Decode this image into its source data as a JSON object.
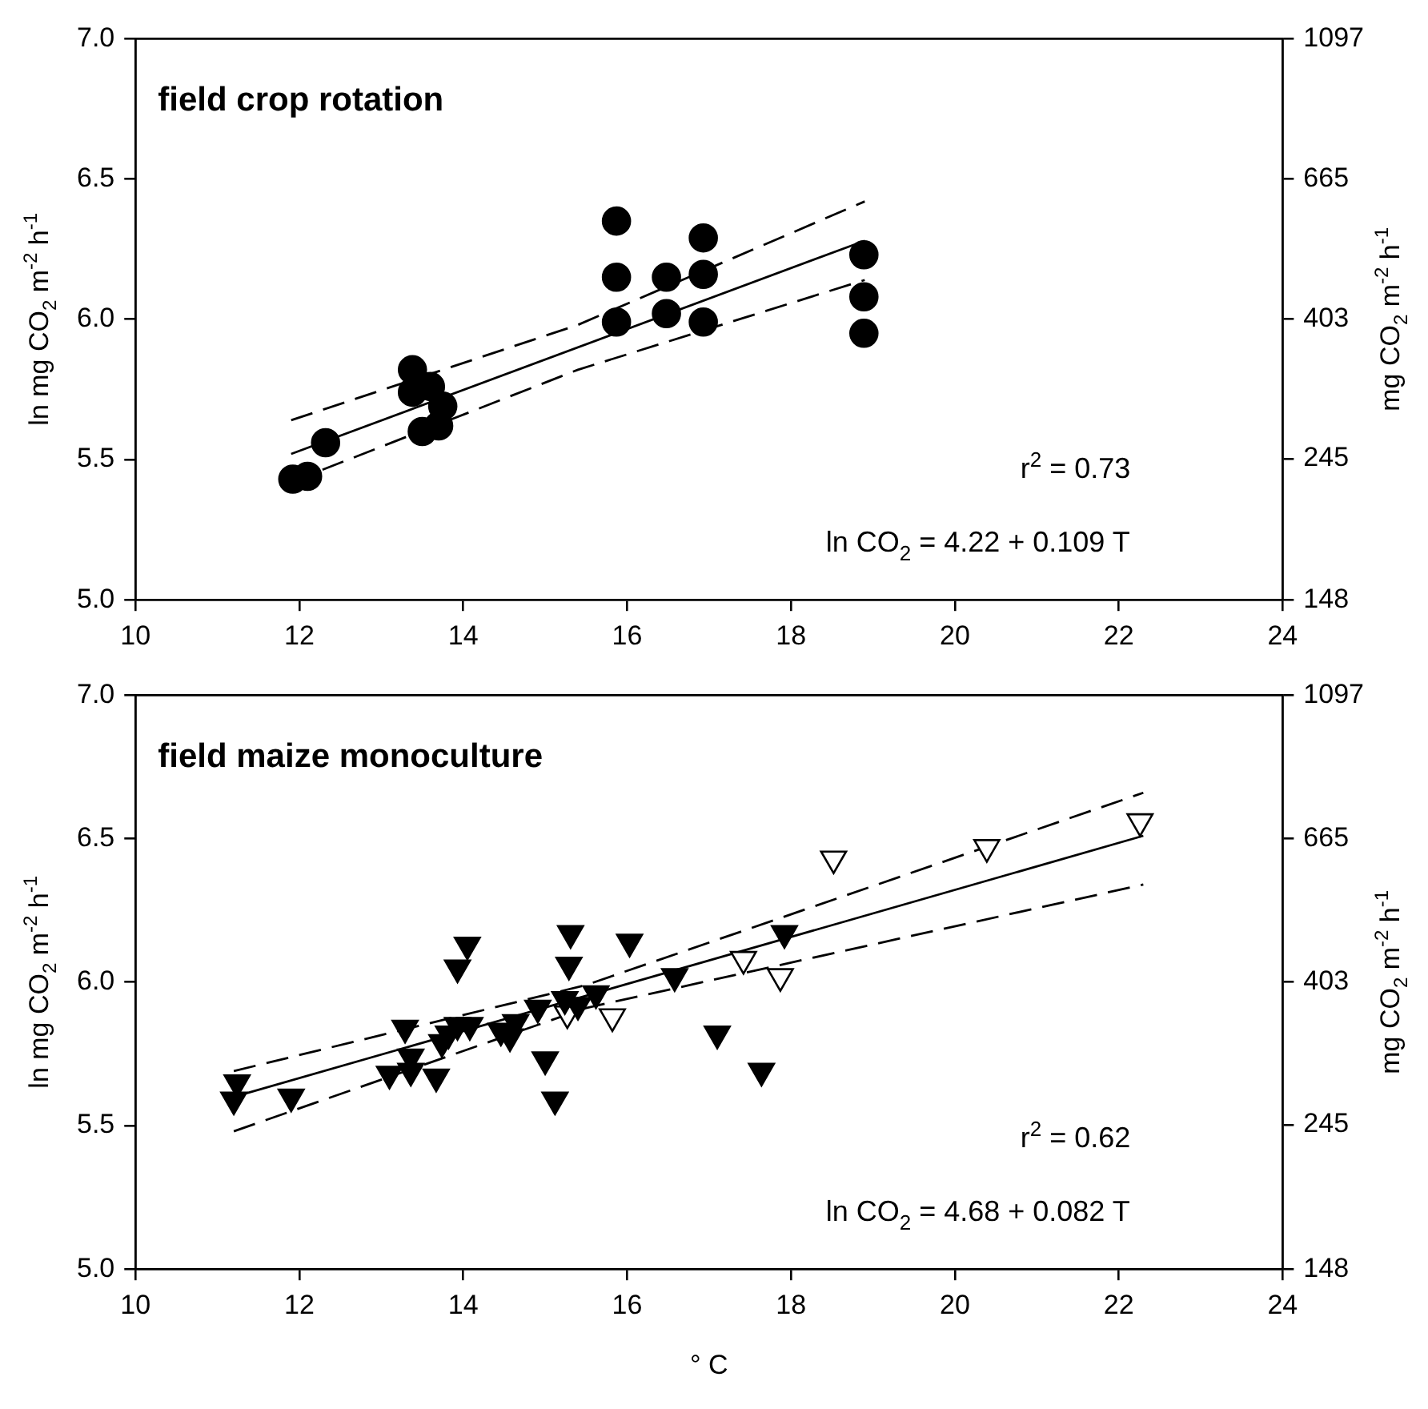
{
  "chart_data": [
    {
      "type": "scatter",
      "title": "field crop rotation",
      "ylabel": "ln mg CO$_{2}$ m$^{-2}$ h$^{-1}$",
      "y2label": "mg CO$_{2}$ m$^{-2}$ h$^{-1}$",
      "annotations": [
        "r$^{2}$ = 0.73",
        "ln CO$_{2}$ = 4.22 + 0.109 T"
      ],
      "xlim": [
        10,
        24
      ],
      "xticks": [
        10,
        12,
        14,
        16,
        18,
        20,
        22,
        24
      ],
      "ylim": [
        5,
        7
      ],
      "yticks": [
        {
          "value": 5,
          "label": "5.0"
        },
        {
          "value": 5.5,
          "label": "5.5"
        },
        {
          "value": 6,
          "label": "6.0"
        },
        {
          "value": 6.5,
          "label": "6.5"
        },
        {
          "value": 7,
          "label": "7.0"
        }
      ],
      "y2lim": [
        148,
        1097
      ],
      "y2ticks": [
        148,
        245,
        403,
        665,
        1097
      ],
      "log": "y2",
      "grid": false,
      "legend": false,
      "series": [
        {
          "type": "scatter",
          "marker": "circle",
          "color": "#000000",
          "x": [
            11.92,
            12.1,
            12.32,
            13.38,
            13.38,
            13.6,
            13.75,
            13.5,
            13.7,
            15.87,
            15.87,
            15.87,
            16.48,
            16.48,
            16.93,
            16.93,
            16.93,
            18.89,
            18.89,
            18.89
          ],
          "values": [
            5.43,
            5.44,
            5.56,
            5.82,
            5.74,
            5.76,
            5.69,
            5.6,
            5.62,
            6.35,
            6.15,
            5.99,
            6.15,
            6.02,
            6.29,
            6.16,
            5.99,
            6.23,
            6.08,
            5.95
          ]
        },
        {
          "type": "line",
          "line_style": "solid",
          "color": "#000000",
          "x": [
            11.9,
            18.9
          ],
          "values": [
            5.52,
            6.28
          ]
        },
        {
          "type": "line",
          "line_style": "dashed",
          "color": "#000000",
          "x": [
            11.9,
            15.4,
            18.9
          ],
          "values": [
            5.64,
            5.98,
            6.42
          ]
        },
        {
          "type": "line",
          "line_style": "dashed",
          "color": "#000000",
          "x": [
            11.9,
            15.4,
            18.9
          ],
          "values": [
            5.42,
            5.82,
            6.14
          ]
        }
      ]
    },
    {
      "type": "scatter",
      "title": "field maize monoculture",
      "xlabel": "° C",
      "ylabel": "ln mg CO$_{2}$ m$^{-2}$ h$^{-1}$",
      "y2label": "mg CO$_{2}$ m$^{-2}$ h$^{-1}$",
      "annotations": [
        "r$^{2}$ = 0.62",
        "ln CO$_{2}$ = 4.68 + 0.082 T"
      ],
      "xlim": [
        10,
        24
      ],
      "xticks": [
        10,
        12,
        14,
        16,
        18,
        20,
        22,
        24
      ],
      "ylim": [
        5,
        7
      ],
      "yticks": [
        {
          "value": 5,
          "label": "5.0"
        },
        {
          "value": 5.5,
          "label": "5.5"
        },
        {
          "value": 6,
          "label": "6.0"
        },
        {
          "value": 6.5,
          "label": "6.5"
        },
        {
          "value": 7,
          "label": "7.0"
        }
      ],
      "y2lim": [
        148,
        1097
      ],
      "y2ticks": [
        148,
        245,
        403,
        665,
        1097
      ],
      "log": "y2",
      "grid": false,
      "legend": false,
      "series": [
        {
          "type": "scatter",
          "marker": "triangle",
          "color": "#000000",
          "x": [
            11.24,
            11.2,
            11.9,
            13.1,
            13.29,
            13.36,
            13.36,
            13.67,
            13.74,
            13.82,
            13.93,
            13.93,
            14.05,
            14.08,
            14.46,
            14.57,
            14.64,
            14.91,
            15.0,
            15.12,
            15.24,
            15.29,
            15.31,
            15.4,
            15.62,
            16.03,
            16.58,
            17.1,
            17.64,
            17.92
          ],
          "values": [
            5.65,
            5.59,
            5.6,
            5.68,
            5.84,
            5.69,
            5.74,
            5.67,
            5.79,
            5.82,
            5.85,
            6.05,
            6.13,
            5.85,
            5.83,
            5.81,
            5.86,
            5.91,
            5.73,
            5.59,
            5.94,
            6.06,
            6.17,
            5.92,
            5.96,
            6.14,
            6.02,
            5.82,
            5.69,
            6.17
          ]
        },
        {
          "type": "scatter",
          "marker": "triangle",
          "color": "#ffffff",
          "x": [
            15.27,
            15.82,
            17.42,
            17.87,
            18.52,
            20.39,
            22.26
          ],
          "values": [
            5.89,
            5.88,
            6.08,
            6.02,
            6.43,
            6.47,
            6.56
          ]
        },
        {
          "type": "line",
          "line_style": "solid",
          "color": "#000000",
          "x": [
            11.2,
            22.3
          ],
          "values": [
            5.6,
            6.51
          ]
        },
        {
          "type": "line",
          "line_style": "dashed",
          "color": "#000000",
          "x": [
            11.2,
            15.5,
            22.3
          ],
          "values": [
            5.69,
            5.99,
            6.66
          ]
        },
        {
          "type": "line",
          "line_style": "dashed",
          "color": "#000000",
          "x": [
            11.2,
            15.5,
            22.3
          ],
          "values": [
            5.48,
            5.91,
            6.34
          ]
        }
      ]
    }
  ]
}
